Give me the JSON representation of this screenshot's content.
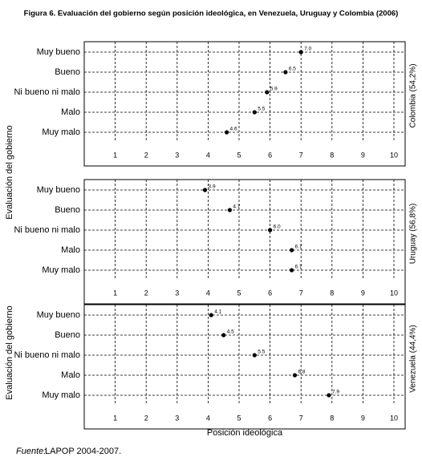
{
  "title": "Figura 6. Evaluación del gobierno según posición ideológica, en Venezuela, Uruguay y Colombia (2006)",
  "y_labels": [
    "Evaluación del gobierno",
    "Evaluación del gobierno"
  ],
  "x_label": "Posición ideológica",
  "source": {
    "label": "Fuente:",
    "text": "LAPOP 2004-2007."
  },
  "chart_data": [
    {
      "type": "dot",
      "panel_label": "Colombia (54,2%)",
      "categories": [
        "Muy bueno",
        "Bueno",
        "Ni bueno ni malo",
        "Malo",
        "Muy malo"
      ],
      "values": [
        7.0,
        6.5,
        5.9,
        5.5,
        4.6
      ],
      "value_labels": [
        "7.0",
        "6.5",
        "5.9",
        "5.5",
        "4.6"
      ],
      "color": "#000000",
      "xlim": [
        0,
        10
      ],
      "xticks": [
        1,
        2,
        3,
        4,
        5,
        6,
        7,
        8,
        9,
        10
      ],
      "grid": true
    },
    {
      "type": "dot",
      "panel_label": "Uruguay (56,8%)",
      "categories": [
        "Muy bueno",
        "Bueno",
        "Ni bueno ni malo",
        "Malo",
        "Muy malo"
      ],
      "values": [
        3.9,
        4.7,
        6.0,
        6.7,
        6.7
      ],
      "value_labels": [
        "3.9",
        "4.7",
        "6.0",
        "6.7",
        "6.7"
      ],
      "color": "#000000",
      "xlim": [
        0,
        10
      ],
      "xticks": [
        1,
        2,
        3,
        4,
        5,
        6,
        7,
        8,
        9,
        10
      ],
      "grid": true
    },
    {
      "type": "dot",
      "panel_label": "Venezuela (44,4%)",
      "categories": [
        "Muy bueno",
        "Bueno",
        "Ni bueno ni malo",
        "Malo",
        "Muy malo"
      ],
      "values": [
        4.1,
        4.5,
        5.5,
        6.8,
        7.9
      ],
      "value_labels": [
        "4.1",
        "4.5",
        "5.5",
        "6.8",
        "7.9"
      ],
      "color": "#000000",
      "xlim": [
        0,
        10
      ],
      "xticks": [
        1,
        2,
        3,
        4,
        5,
        6,
        7,
        8,
        9,
        10
      ],
      "grid": true
    }
  ]
}
